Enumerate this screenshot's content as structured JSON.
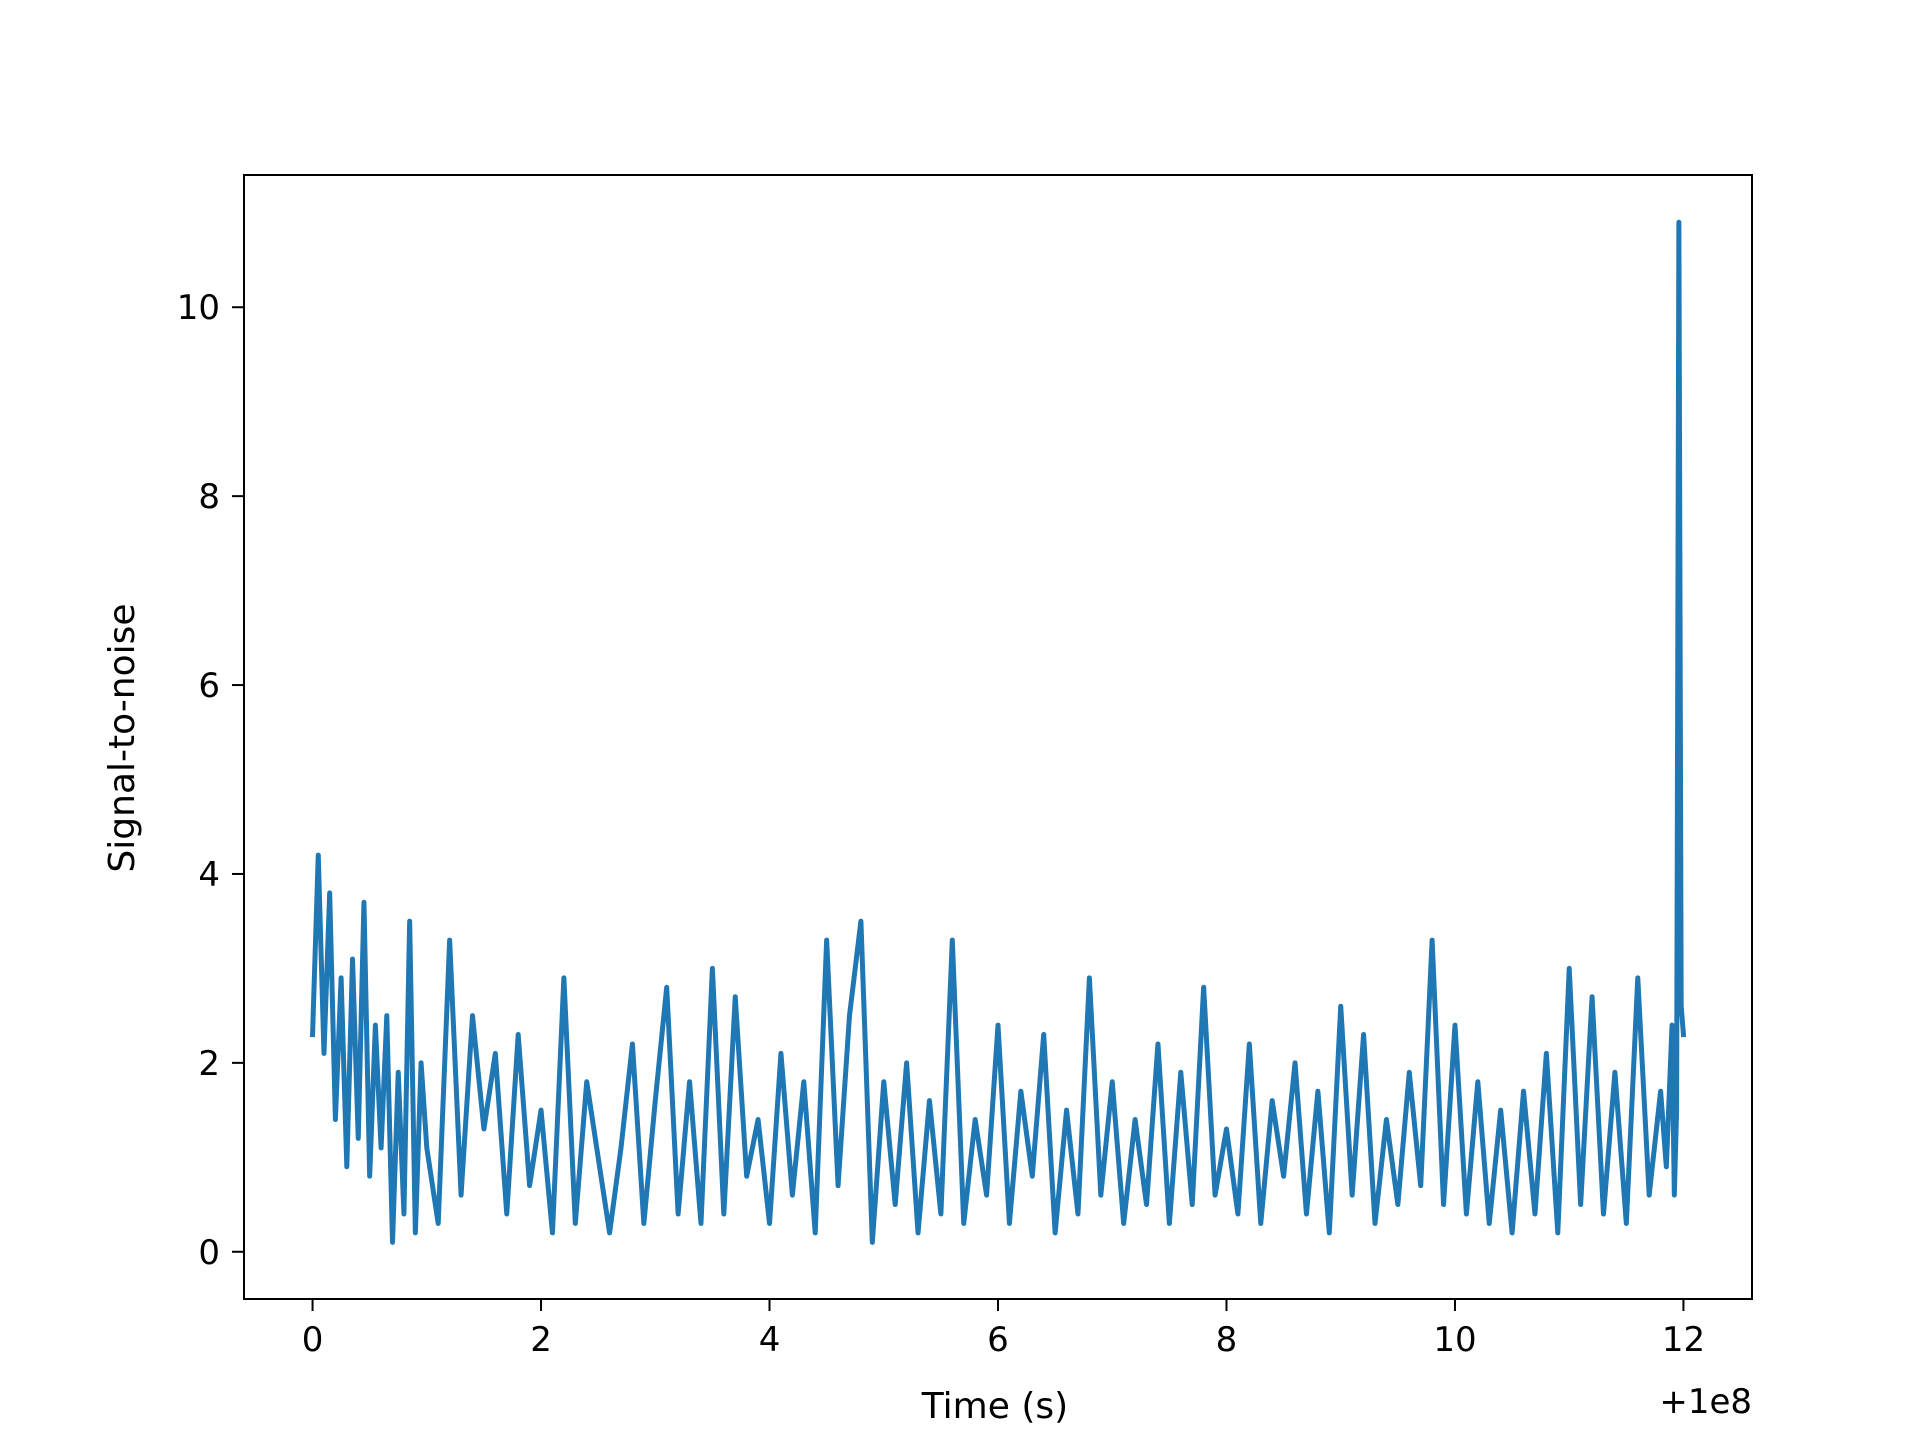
{
  "chart_data": {
    "type": "line",
    "title": "",
    "xlabel": "Time (s)",
    "ylabel": "Signal-to-noise",
    "x_offset_label": "+1e8",
    "xlim": [
      -0.6,
      12.6
    ],
    "ylim": [
      -0.5,
      11.4
    ],
    "x_ticks": [
      0,
      2,
      4,
      6,
      8,
      10,
      12
    ],
    "y_ticks": [
      0,
      2,
      4,
      6,
      8,
      10
    ],
    "x_tick_labels": [
      "0",
      "2",
      "4",
      "6",
      "8",
      "10",
      "12"
    ],
    "y_tick_labels": [
      "0",
      "2",
      "4",
      "6",
      "8",
      "10"
    ],
    "grid": false,
    "legend": "none",
    "colors": {
      "series": "#1f77b4",
      "axes": "#000000",
      "background": "#ffffff"
    },
    "series": [
      {
        "x": [
          0.0,
          0.05,
          0.1,
          0.15,
          0.2,
          0.25,
          0.3,
          0.35,
          0.4,
          0.45,
          0.5,
          0.55,
          0.6,
          0.65,
          0.7,
          0.75,
          0.8,
          0.85,
          0.9,
          0.95,
          1.0,
          1.1,
          1.2,
          1.3,
          1.4,
          1.5,
          1.6,
          1.7,
          1.8,
          1.9,
          2.0,
          2.1,
          2.2,
          2.3,
          2.4,
          2.5,
          2.6,
          2.7,
          2.8,
          2.9,
          3.0,
          3.1,
          3.2,
          3.3,
          3.4,
          3.5,
          3.6,
          3.7,
          3.8,
          3.9,
          4.0,
          4.1,
          4.2,
          4.3,
          4.4,
          4.5,
          4.6,
          4.7,
          4.8,
          4.9,
          5.0,
          5.1,
          5.2,
          5.3,
          5.4,
          5.5,
          5.6,
          5.7,
          5.8,
          5.9,
          6.0,
          6.1,
          6.2,
          6.3,
          6.4,
          6.5,
          6.6,
          6.7,
          6.8,
          6.9,
          7.0,
          7.1,
          7.2,
          7.3,
          7.4,
          7.5,
          7.6,
          7.7,
          7.8,
          7.9,
          8.0,
          8.1,
          8.2,
          8.3,
          8.4,
          8.5,
          8.6,
          8.7,
          8.8,
          8.9,
          9.0,
          9.1,
          9.2,
          9.3,
          9.4,
          9.5,
          9.6,
          9.7,
          9.8,
          9.9,
          10.0,
          10.1,
          10.2,
          10.3,
          10.4,
          10.5,
          10.6,
          10.7,
          10.8,
          10.9,
          11.0,
          11.1,
          11.2,
          11.3,
          11.4,
          11.5,
          11.6,
          11.7,
          11.8,
          11.85,
          11.9,
          11.92,
          11.94,
          11.96,
          11.98,
          12.0
        ],
        "y": [
          2.3,
          4.2,
          2.1,
          3.8,
          1.4,
          2.9,
          0.9,
          3.1,
          1.2,
          3.7,
          0.8,
          2.4,
          1.1,
          2.5,
          0.1,
          1.9,
          0.4,
          3.5,
          0.2,
          2.0,
          1.1,
          0.3,
          3.3,
          0.6,
          2.5,
          1.3,
          2.1,
          0.4,
          2.3,
          0.7,
          1.5,
          0.2,
          2.9,
          0.3,
          1.8,
          1.0,
          0.2,
          1.1,
          2.2,
          0.3,
          1.6,
          2.8,
          0.4,
          1.8,
          0.3,
          3.0,
          0.4,
          2.7,
          0.8,
          1.4,
          0.3,
          2.1,
          0.6,
          1.8,
          0.2,
          3.3,
          0.7,
          2.5,
          3.5,
          0.1,
          1.8,
          0.5,
          2.0,
          0.2,
          1.6,
          0.4,
          3.3,
          0.3,
          1.4,
          0.6,
          2.4,
          0.3,
          1.7,
          0.8,
          2.3,
          0.2,
          1.5,
          0.4,
          2.9,
          0.6,
          1.8,
          0.3,
          1.4,
          0.5,
          2.2,
          0.3,
          1.9,
          0.5,
          2.8,
          0.6,
          1.3,
          0.4,
          2.2,
          0.3,
          1.6,
          0.8,
          2.0,
          0.4,
          1.7,
          0.2,
          2.6,
          0.6,
          2.3,
          0.3,
          1.4,
          0.5,
          1.9,
          0.7,
          3.3,
          0.5,
          2.4,
          0.4,
          1.8,
          0.3,
          1.5,
          0.2,
          1.7,
          0.4,
          2.1,
          0.2,
          3.0,
          0.5,
          2.7,
          0.4,
          1.9,
          0.3,
          2.9,
          0.6,
          1.7,
          0.9,
          2.4,
          0.6,
          1.5,
          10.9,
          2.6,
          2.3
        ]
      }
    ]
  }
}
